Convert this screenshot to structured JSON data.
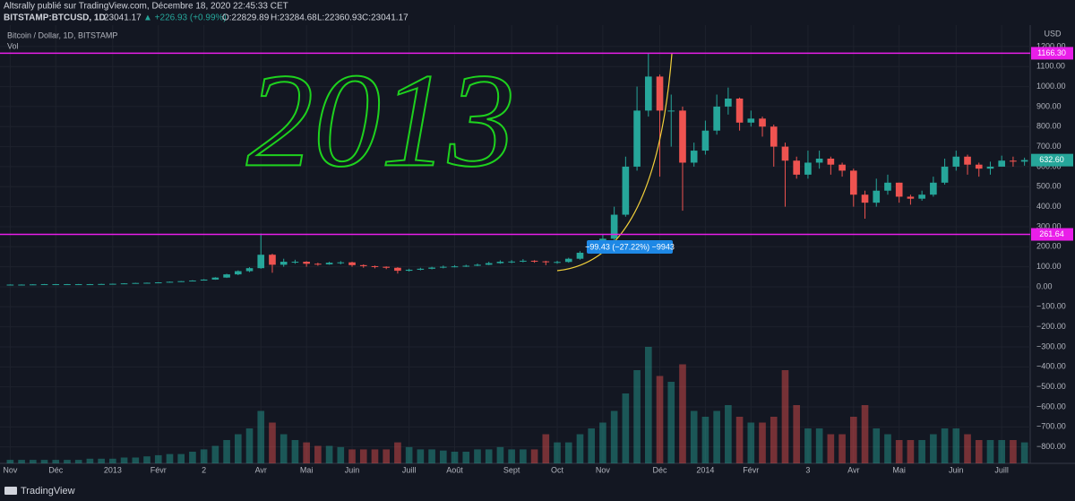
{
  "header": {
    "title": "Altsrally publié sur TradingView.com, Décembre 18, 2020 22:45:33 CET",
    "symbol": "BITSTAMP:BTCUSD, 1D",
    "price": "23041.17",
    "change": "▲ +226.93 (+0.99%)",
    "ohlc": [
      "O:22829.89",
      "H:23284.68",
      "L:22360.93",
      "C:23041.17"
    ]
  },
  "footer": {
    "brand": "TradingView"
  },
  "chart_data": {
    "type": "candlestick",
    "legend": [
      "Bitcoin / Dollar, 1D, BITSTAMP",
      "Vol"
    ],
    "currency": "USD",
    "handwriting": "2013",
    "annotation": "−99.43 (−27.22%) −9943",
    "up_color": "#26a69a",
    "down_color": "#ef5350",
    "categories": [
      "Nov",
      null,
      null,
      null,
      "Déc",
      null,
      null,
      null,
      null,
      "2013",
      null,
      null,
      null,
      "Févr",
      null,
      null,
      null,
      "2",
      null,
      null,
      null,
      null,
      "Avr",
      null,
      null,
      null,
      "Mai",
      null,
      null,
      null,
      "Juin",
      null,
      null,
      null,
      null,
      "Juill",
      null,
      null,
      null,
      "Août",
      null,
      null,
      null,
      null,
      "Sept",
      null,
      null,
      null,
      "Oct",
      null,
      null,
      null,
      "Nov",
      null,
      null,
      null,
      null,
      "Déc",
      null,
      null,
      null,
      "2014",
      null,
      null,
      null,
      "Févr",
      null,
      null,
      null,
      null,
      "3",
      null,
      null,
      null,
      "Avr",
      null,
      null,
      null,
      "Mai",
      null,
      null,
      null,
      null,
      "Juin",
      null,
      null,
      null,
      "Juill",
      null,
      null
    ],
    "open": [
      11,
      11,
      11,
      12,
      13,
      13,
      13,
      13,
      13,
      14,
      15,
      17,
      19,
      20,
      22,
      25,
      28,
      31,
      36,
      46,
      62,
      78,
      93,
      160,
      110,
      125,
      125,
      115,
      112,
      120,
      122,
      108,
      103,
      100,
      95,
      80,
      85,
      90,
      96,
      100,
      102,
      105,
      110,
      118,
      125,
      126,
      130,
      127,
      124,
      124,
      140,
      170,
      195,
      240,
      360,
      600,
      880,
      1050,
      880,
      880,
      620,
      680,
      780,
      900,
      940,
      820,
      840,
      800,
      700,
      630,
      560,
      620,
      640,
      610,
      580,
      460,
      420,
      480,
      520,
      450,
      440,
      460,
      520,
      600,
      650,
      610,
      590,
      600,
      630,
      625
    ],
    "high": [
      12,
      12,
      13,
      14,
      14,
      14,
      14,
      14,
      15,
      16,
      18,
      20,
      21,
      23,
      26,
      29,
      33,
      38,
      48,
      65,
      82,
      98,
      266,
      165,
      140,
      135,
      128,
      120,
      125,
      128,
      125,
      112,
      106,
      102,
      98,
      90,
      95,
      100,
      106,
      108,
      110,
      116,
      125,
      132,
      133,
      138,
      133,
      130,
      130,
      145,
      178,
      210,
      260,
      400,
      650,
      1000,
      1166,
      1060,
      960,
      900,
      720,
      830,
      960,
      995,
      945,
      880,
      850,
      810,
      720,
      650,
      680,
      680,
      650,
      620,
      590,
      480,
      540,
      560,
      520,
      460,
      480,
      550,
      640,
      680,
      660,
      620,
      625,
      655,
      650,
      645
    ],
    "low": [
      10,
      10,
      11,
      12,
      12,
      12,
      12,
      12,
      13,
      14,
      15,
      16,
      18,
      20,
      21,
      24,
      27,
      33,
      35,
      44,
      58,
      73,
      90,
      70,
      100,
      115,
      100,
      105,
      110,
      112,
      100,
      95,
      92,
      88,
      66,
      76,
      82,
      87,
      92,
      97,
      99,
      103,
      108,
      115,
      118,
      122,
      120,
      108,
      115,
      120,
      135,
      165,
      200,
      230,
      350,
      580,
      850,
      550,
      700,
      380,
      600,
      660,
      760,
      860,
      780,
      800,
      750,
      600,
      400,
      540,
      540,
      590,
      560,
      550,
      400,
      340,
      400,
      460,
      420,
      410,
      430,
      450,
      510,
      580,
      560,
      550,
      560,
      600,
      600,
      605
    ],
    "close": [
      11,
      11,
      12,
      13,
      13,
      13,
      13,
      13,
      14,
      15,
      17,
      19,
      20,
      22,
      25,
      28,
      31,
      36,
      46,
      62,
      78,
      93,
      160,
      110,
      125,
      125,
      115,
      112,
      120,
      122,
      108,
      103,
      100,
      95,
      80,
      85,
      90,
      96,
      100,
      102,
      105,
      110,
      118,
      125,
      126,
      130,
      127,
      124,
      124,
      140,
      170,
      195,
      240,
      360,
      600,
      880,
      1050,
      880,
      880,
      620,
      680,
      780,
      900,
      940,
      820,
      840,
      800,
      700,
      630,
      560,
      620,
      640,
      610,
      580,
      460,
      420,
      480,
      520,
      450,
      440,
      460,
      520,
      600,
      650,
      610,
      590,
      600,
      630,
      625,
      633
    ],
    "volume": [
      3,
      3,
      3,
      3,
      3,
      3,
      3,
      4,
      4,
      4,
      5,
      5,
      6,
      7,
      8,
      8,
      10,
      12,
      15,
      20,
      25,
      30,
      45,
      35,
      25,
      20,
      18,
      15,
      15,
      14,
      12,
      12,
      12,
      12,
      18,
      14,
      12,
      12,
      11,
      10,
      10,
      12,
      12,
      14,
      12,
      12,
      12,
      25,
      18,
      18,
      25,
      30,
      35,
      45,
      60,
      80,
      100,
      75,
      70,
      85,
      45,
      40,
      45,
      50,
      40,
      35,
      35,
      40,
      80,
      50,
      30,
      30,
      25,
      25,
      40,
      50,
      30,
      25,
      20,
      20,
      20,
      25,
      30,
      30,
      25,
      20,
      20,
      20,
      20,
      18
    ],
    "ylim": [
      -882,
      1307
    ],
    "yticks": [
      {
        "value": 1200,
        "label": "1200.00"
      },
      {
        "value": 1100,
        "label": "1100.00"
      },
      {
        "value": 1000,
        "label": "1000.00"
      },
      {
        "value": 900,
        "label": "900.00"
      },
      {
        "value": 800,
        "label": "800.00"
      },
      {
        "value": 700,
        "label": "700.00"
      },
      {
        "value": 600,
        "label": "600.00"
      },
      {
        "value": 500,
        "label": "500.00"
      },
      {
        "value": 400,
        "label": "400.00"
      },
      {
        "value": 300,
        "label": "300.00"
      },
      {
        "value": 200,
        "label": "200.00"
      },
      {
        "value": 100,
        "label": "100.00"
      },
      {
        "value": 0,
        "label": "0.00"
      },
      {
        "value": -100,
        "label": "−100.00"
      },
      {
        "value": -200,
        "label": "−200.00"
      },
      {
        "value": -300,
        "label": "−300.00"
      },
      {
        "value": -400,
        "label": "−400.00"
      },
      {
        "value": -500,
        "label": "−500.00"
      },
      {
        "value": -600,
        "label": "−600.00"
      },
      {
        "value": -700,
        "label": "−700.00"
      },
      {
        "value": -800,
        "label": "−800.00"
      }
    ],
    "grid": true,
    "hlines": [
      {
        "value": 1166.3,
        "label": "1166.30"
      },
      {
        "value": 261.64,
        "label": "261.64"
      }
    ],
    "hline_color": "#e91ee9",
    "last_price": {
      "value": 632.6,
      "label": "632.60"
    }
  }
}
